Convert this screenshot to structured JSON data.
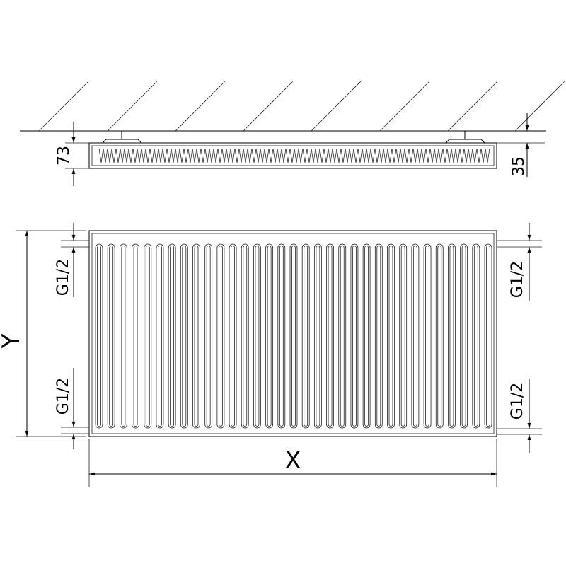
{
  "labels": {
    "depth": "73",
    "wall_distance": "35",
    "connection_top_left": "G1/2",
    "connection_bottom_left": "G1/2",
    "connection_top_right": "G1/2",
    "connection_bottom_right": "G1/2",
    "height": "Y",
    "width": "X"
  },
  "rib_count": 33,
  "colors": {
    "line": "#000000",
    "background": "#ffffff"
  }
}
